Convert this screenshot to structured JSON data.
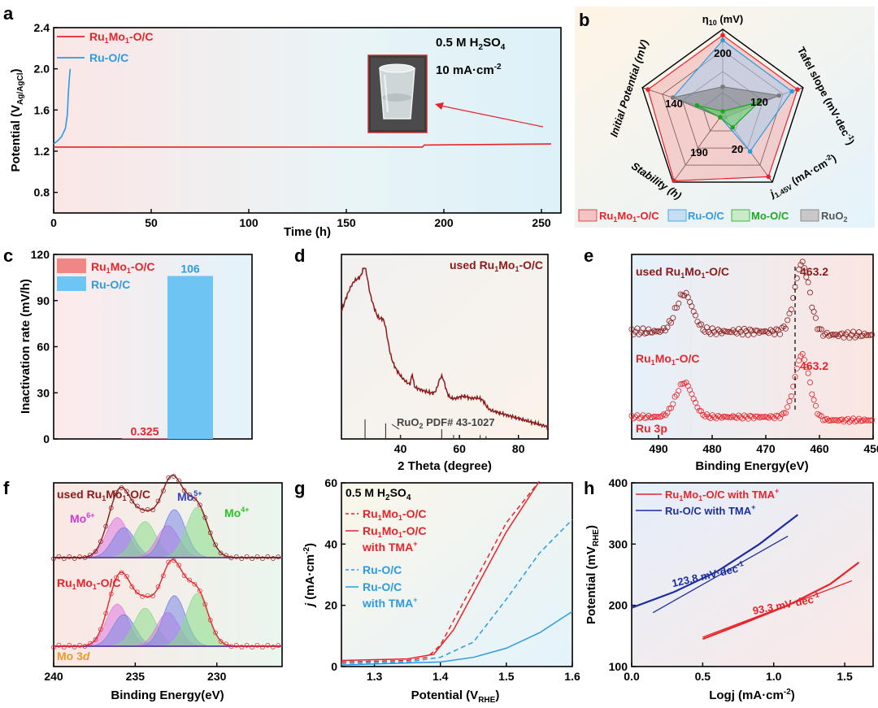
{
  "colors": {
    "ru1mo1": "#e8242a",
    "ru": "#2c9be0",
    "used": "#8b1a1a",
    "mo_green": "#1ea71e",
    "ruo2_grey": "#7a7a7a",
    "navy": "#1c2fa0",
    "mo6": "#d23ad2",
    "mo5": "#2f3fc4",
    "mo4": "#28c428",
    "mo3d": "#e89a2c"
  },
  "chart_data": [
    {
      "panel": "a",
      "type": "line",
      "xlabel": "Time (h)",
      "ylabel": "Potential (VAg/AgCl)",
      "xlim": [
        0,
        260
      ],
      "ylim": [
        0.6,
        2.4
      ],
      "xticks": [
        "0",
        "50",
        "100",
        "150",
        "200",
        "250"
      ],
      "yticks": [
        "0.8",
        "1.2",
        "1.6",
        "2.0",
        "2.4"
      ],
      "annotations": [
        "0.5 M H2SO4",
        "10 mA·cm-2"
      ],
      "series": [
        {
          "name": "Ru1Mo1-O/C",
          "x": [
            0,
            50,
            100,
            150,
            189,
            190,
            220,
            255
          ],
          "y": [
            1.24,
            1.24,
            1.24,
            1.24,
            1.24,
            1.26,
            1.265,
            1.27
          ]
        },
        {
          "name": "Ru-O/C",
          "x": [
            0,
            2,
            4,
            6,
            7,
            7.5,
            8,
            8.5
          ],
          "y": [
            1.27,
            1.3,
            1.34,
            1.42,
            1.55,
            1.75,
            1.9,
            2.0
          ]
        }
      ]
    },
    {
      "panel": "b",
      "type": "radar",
      "axes": [
        "η10 (mV)",
        "Tafel slope (mV·dec-1)",
        "j1.45V (mA·cm-2)",
        "Stability (h)",
        "Initial Potential (mV)"
      ],
      "tick_labels": [
        "200",
        "120",
        "20",
        "190",
        "140"
      ],
      "legend": [
        "Ru1Mo1-O/C",
        "Ru-O/C",
        "Mo-O/C",
        "RuO2"
      ],
      "series": [
        {
          "name": "Ru1Mo1-O/C",
          "r": [
            0.93,
            0.93,
            0.92,
            0.98,
            0.93
          ]
        },
        {
          "name": "Ru-O/C",
          "r": [
            0.87,
            0.86,
            0.55,
            0.05,
            0.62
          ]
        },
        {
          "name": "Mo-O/C",
          "r": [
            0.03,
            0.45,
            0.2,
            0.05,
            0.32
          ]
        },
        {
          "name": "RuO2",
          "r": [
            0.32,
            0.7,
            0.05,
            0.05,
            0.62
          ]
        }
      ]
    },
    {
      "panel": "c",
      "type": "bar",
      "ylabel": "Inactivation rate (mV/h)",
      "ylim": [
        0,
        120
      ],
      "yticks": [
        "0",
        "30",
        "60",
        "90",
        "120"
      ],
      "categories": [
        "Ru1Mo1-O/C",
        "Ru-O/C"
      ],
      "values": [
        0.325,
        106
      ],
      "value_labels": [
        "0.325",
        "106"
      ]
    },
    {
      "panel": "d",
      "type": "line",
      "xlabel": "2 Theta (degree)",
      "xlim": [
        20,
        90
      ],
      "xticks": [
        "40",
        "60",
        "80"
      ],
      "series_label": "used Ru1Mo1-O/C",
      "reference": "RuO2 PDF# 43-1027",
      "reference_peaks": [
        28,
        35,
        40,
        54,
        58,
        67,
        69
      ],
      "reference_heights": [
        1.0,
        0.8,
        0.2,
        0.5,
        0.2,
        0.2,
        0.15
      ]
    },
    {
      "panel": "e",
      "type": "scatter",
      "xlabel": "Binding Energy(eV)",
      "xlim": [
        495,
        450
      ],
      "xticks": [
        "490",
        "480",
        "470",
        "460",
        "450"
      ],
      "peak_position": "463.2",
      "labels": [
        "used Ru1Mo1-O/C",
        "Ru1Mo1-O/C",
        "Ru 3p"
      ]
    },
    {
      "panel": "f",
      "type": "scatter",
      "xlabel": "Binding Energy(eV)",
      "xlim": [
        240,
        226
      ],
      "xticks": [
        "240",
        "235",
        "230"
      ],
      "labels": [
        "used Ru1Mo1-O/C",
        "Ru1Mo1-O/C",
        "Mo 3d"
      ],
      "species": [
        "Mo6+",
        "Mo5+",
        "Mo4+"
      ]
    },
    {
      "panel": "g",
      "type": "line",
      "xlabel": "Potential (VRHE)",
      "ylabel": "j (mA·cm-2)",
      "xlim": [
        1.25,
        1.6
      ],
      "ylim": [
        0,
        60
      ],
      "xticks": [
        "1.3",
        "1.4",
        "1.5",
        "1.6"
      ],
      "yticks": [
        "0",
        "20",
        "40",
        "60"
      ],
      "electrolyte": "0.5 M H2SO4",
      "legend": [
        "Ru1Mo1-O/C",
        "Ru1Mo1-O/C with TMA+",
        "Ru-O/C",
        "Ru-O/C with TMA+"
      ],
      "series": [
        {
          "name": "Ru1Mo1-O/C",
          "dashed": true,
          "x": [
            1.25,
            1.35,
            1.38,
            1.4,
            1.45,
            1.5,
            1.55
          ],
          "y": [
            1.5,
            2,
            3,
            7,
            27,
            47,
            61
          ]
        },
        {
          "name": "Ru1Mo1-O/C with TMA+",
          "dashed": false,
          "x": [
            1.25,
            1.35,
            1.39,
            1.42,
            1.46,
            1.5,
            1.55
          ],
          "y": [
            2,
            2.5,
            4,
            12,
            28,
            44,
            61
          ]
        },
        {
          "name": "Ru-O/C",
          "dashed": true,
          "x": [
            1.25,
            1.35,
            1.4,
            1.45,
            1.5,
            1.55,
            1.6
          ],
          "y": [
            1,
            1.5,
            3,
            8,
            22,
            37,
            48
          ]
        },
        {
          "name": "Ru-O/C with TMA+",
          "dashed": false,
          "x": [
            1.25,
            1.4,
            1.45,
            1.5,
            1.55,
            1.6
          ],
          "y": [
            0.5,
            1.5,
            3,
            6,
            11,
            18
          ]
        }
      ]
    },
    {
      "panel": "h",
      "type": "line",
      "xlabel": "Logj (mA·cm-2)",
      "ylabel": "Potential (mVRHE)",
      "xlim": [
        0,
        1.7
      ],
      "ylim": [
        100,
        400
      ],
      "xticks": [
        "0.0",
        "0.5",
        "1.0",
        "1.5"
      ],
      "yticks": [
        "100",
        "200",
        "300",
        "400"
      ],
      "legend": [
        "Ru1Mo1-O/C with TMA+",
        "Ru-O/C with TMA+"
      ],
      "tafel_labels": [
        "123.8 mV·dec-1",
        "93.3 mV·dec-1"
      ],
      "series": [
        {
          "name": "Ru1Mo1-O/C with TMA+",
          "x": [
            0.5,
            0.8,
            1.1,
            1.4,
            1.6
          ],
          "y": [
            145,
            172,
            200,
            235,
            270
          ]
        },
        {
          "name": "Ru-O/C with TMA+",
          "x": [
            0,
            0.3,
            0.6,
            0.9,
            1.17
          ],
          "y": [
            196,
            222,
            255,
            300,
            348
          ]
        }
      ]
    }
  ]
}
